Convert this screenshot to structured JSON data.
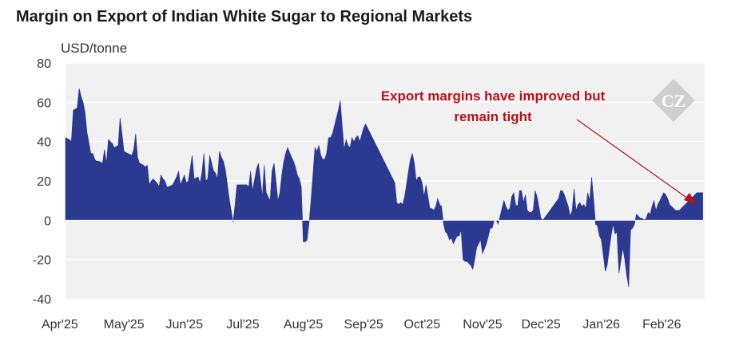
{
  "chart_data": {
    "type": "area",
    "title": "Margin on Export of Indian White Sugar to Regional Markets",
    "ylabel": "USD/tonne",
    "xlabel": "",
    "ylim": [
      -40,
      80
    ],
    "yticks": [
      80,
      60,
      40,
      20,
      0,
      -20,
      -40
    ],
    "ytick_labels": [
      "80",
      "60",
      "40",
      "20",
      "0",
      "-20",
      "-40"
    ],
    "xtick_labels": [
      "Apr'25",
      "May'25",
      "Jun'25",
      "Jul'25",
      "Aug'25",
      "Sep'25",
      "Oct'25",
      "Nov'25",
      "Dec'25",
      "Jan'26",
      "Feb'26"
    ],
    "grid": "horizontal",
    "color": "#2b3990",
    "annotation": {
      "lines": [
        "Export margins have improved but",
        "remain tight"
      ]
    },
    "series": [
      {
        "x": [
          "2025-04-01",
          "2025-04-03",
          "2025-04-04",
          "2025-04-05",
          "2025-04-07",
          "2025-04-08",
          "2025-04-09",
          "2025-04-10",
          "2025-04-11",
          "2025-04-12",
          "2025-04-14",
          "2025-04-15",
          "2025-04-16",
          "2025-04-17",
          "2025-04-18",
          "2025-04-20",
          "2025-04-21",
          "2025-04-22",
          "2025-04-23",
          "2025-04-24",
          "2025-04-25",
          "2025-04-26",
          "2025-04-28",
          "2025-04-29",
          "2025-04-30",
          "2025-05-01",
          "2025-05-03",
          "2025-05-05",
          "2025-05-06",
          "2025-05-07",
          "2025-05-08",
          "2025-05-09",
          "2025-05-11",
          "2025-05-12",
          "2025-05-13",
          "2025-05-14",
          "2025-05-15",
          "2025-05-16",
          "2025-05-18",
          "2025-05-19",
          "2025-05-20",
          "2025-05-21",
          "2025-05-22",
          "2025-05-23",
          "2025-05-24",
          "2025-05-26",
          "2025-05-27",
          "2025-05-28",
          "2025-05-29",
          "2025-05-30",
          "2025-06-01",
          "2025-06-02",
          "2025-06-03",
          "2025-06-05",
          "2025-06-06",
          "2025-06-08",
          "2025-06-09",
          "2025-06-10",
          "2025-06-11",
          "2025-06-12",
          "2025-06-13",
          "2025-06-14",
          "2025-06-16",
          "2025-06-17",
          "2025-06-18",
          "2025-06-19",
          "2025-06-20",
          "2025-06-21",
          "2025-06-22",
          "2025-06-24",
          "2025-06-26",
          "2025-06-27",
          "2025-06-28",
          "2025-06-30",
          "2025-07-01",
          "2025-07-02",
          "2025-07-03",
          "2025-07-04",
          "2025-07-05",
          "2025-07-06",
          "2025-07-08",
          "2025-07-09",
          "2025-07-10",
          "2025-07-11",
          "2025-07-12",
          "2025-07-13",
          "2025-07-15",
          "2025-07-16",
          "2025-07-17",
          "2025-07-18",
          "2025-07-19",
          "2025-07-20",
          "2025-07-21",
          "2025-07-22",
          "2025-07-23",
          "2025-07-24",
          "2025-07-26",
          "2025-07-27",
          "2025-07-28",
          "2025-07-29",
          "2025-07-30",
          "2025-07-31",
          "2025-08-01",
          "2025-08-02",
          "2025-08-03",
          "2025-08-04",
          "2025-08-05",
          "2025-08-07",
          "2025-08-08",
          "2025-08-09",
          "2025-08-10",
          "2025-08-11",
          "2025-08-12",
          "2025-08-13",
          "2025-08-14",
          "2025-08-15",
          "2025-08-16",
          "2025-08-17",
          "2025-08-18",
          "2025-08-19",
          "2025-08-20",
          "2025-08-21",
          "2025-08-22",
          "2025-08-23",
          "2025-08-24",
          "2025-08-25",
          "2025-08-26",
          "2025-08-27",
          "2025-08-28",
          "2025-08-29",
          "2025-08-30",
          "2025-09-01",
          "2025-09-02",
          "2025-09-17",
          "2025-09-18",
          "2025-09-19",
          "2025-09-20",
          "2025-09-21",
          "2025-09-22",
          "2025-09-23",
          "2025-09-24",
          "2025-09-25",
          "2025-09-26",
          "2025-09-27",
          "2025-09-28",
          "2025-09-29",
          "2025-09-30",
          "2025-10-01",
          "2025-10-02",
          "2025-10-03",
          "2025-10-05",
          "2025-10-06",
          "2025-10-07",
          "2025-10-08",
          "2025-10-09",
          "2025-10-10",
          "2025-10-11",
          "2025-10-12",
          "2025-10-13",
          "2025-10-14",
          "2025-10-15",
          "2025-10-16",
          "2025-10-17",
          "2025-10-18",
          "2025-10-19",
          "2025-10-20",
          "2025-10-21",
          "2025-10-22",
          "2025-10-23",
          "2025-10-24",
          "2025-10-25",
          "2025-10-26",
          "2025-10-27",
          "2025-10-28",
          "2025-10-29",
          "2025-10-30",
          "2025-10-31",
          "2025-11-01",
          "2025-11-03",
          "2025-11-04",
          "2025-11-05",
          "2025-11-06",
          "2025-11-07",
          "2025-11-08",
          "2025-11-09",
          "2025-11-10",
          "2025-11-11",
          "2025-11-12",
          "2025-11-13",
          "2025-11-14",
          "2025-11-15",
          "2025-11-16",
          "2025-11-17",
          "2025-11-18",
          "2025-11-19",
          "2025-11-20",
          "2025-11-21",
          "2025-11-22",
          "2025-11-23",
          "2025-11-24",
          "2025-11-25",
          "2025-11-26",
          "2025-11-27",
          "2025-11-28",
          "2025-11-29",
          "2025-12-01",
          "2025-12-02",
          "2025-12-10",
          "2025-12-11",
          "2025-12-12",
          "2025-12-13",
          "2025-12-14",
          "2025-12-15",
          "2025-12-16",
          "2025-12-17",
          "2025-12-18",
          "2025-12-19",
          "2025-12-20",
          "2025-12-21",
          "2025-12-22",
          "2025-12-23",
          "2025-12-24",
          "2025-12-25",
          "2025-12-26",
          "2025-12-27",
          "2025-12-28",
          "2025-12-29",
          "2025-12-30",
          "2025-12-31",
          "2026-01-01",
          "2026-01-02",
          "2026-01-03",
          "2026-01-04",
          "2026-01-05",
          "2026-01-06",
          "2026-01-07",
          "2026-01-08",
          "2026-01-09",
          "2026-01-10",
          "2026-01-11",
          "2026-01-12",
          "2026-01-13",
          "2026-01-14",
          "2026-01-15",
          "2026-01-16",
          "2026-01-17",
          "2026-01-18",
          "2026-01-19",
          "2026-01-20",
          "2026-01-21",
          "2026-01-22",
          "2026-01-23",
          "2026-01-24",
          "2026-01-25",
          "2026-01-26",
          "2026-01-27",
          "2026-01-28",
          "2026-01-29",
          "2026-01-30",
          "2026-01-31",
          "2026-02-01",
          "2026-02-02",
          "2026-02-03",
          "2026-02-04",
          "2026-02-05",
          "2026-02-06",
          "2026-02-07",
          "2026-02-08",
          "2026-02-09",
          "2026-02-10",
          "2026-02-11",
          "2026-02-12",
          "2026-02-13",
          "2026-02-14",
          "2026-02-15",
          "2026-02-16",
          "2026-02-17",
          "2026-02-18",
          "2026-02-19",
          "2026-02-20",
          "2026-02-21",
          "2026-02-22"
        ],
        "y": [
          42,
          41,
          40,
          56,
          57,
          67,
          63,
          60,
          55,
          45,
          34,
          34,
          31,
          30,
          30,
          29,
          36,
          29,
          41,
          40,
          39,
          37,
          38,
          52,
          44,
          35,
          34,
          33,
          36,
          44,
          32,
          29,
          28,
          27,
          28,
          18,
          20,
          21,
          19,
          17,
          23,
          21,
          20,
          17,
          17,
          18,
          20,
          22,
          25,
          18,
          23,
          19,
          20,
          33,
          21,
          22,
          19,
          24,
          34,
          20,
          21,
          33,
          25,
          24,
          21,
          35,
          32,
          30,
          26,
          11,
          -1,
          8,
          18,
          18,
          18,
          18,
          18,
          17,
          25,
          15,
          26,
          29,
          21,
          12,
          28,
          14,
          10,
          25,
          29,
          20,
          10,
          14,
          23,
          30,
          34,
          37,
          32,
          30,
          27,
          23,
          21,
          17,
          -11,
          -11,
          -10,
          -1,
          10,
          37,
          35,
          38,
          33,
          31,
          31,
          34,
          42,
          42,
          44,
          48,
          52,
          56,
          61,
          48,
          36,
          41,
          38,
          37,
          42,
          40,
          42,
          43,
          40,
          47,
          49,
          19,
          9,
          8,
          9,
          8,
          12,
          18,
          25,
          31,
          34,
          29,
          20,
          22,
          22,
          19,
          12,
          18,
          6,
          6,
          5,
          7,
          11,
          8,
          7,
          -2,
          -6,
          -7,
          -10,
          -9,
          -12,
          -10,
          -8,
          -8,
          -5,
          -20,
          -21,
          -21,
          -22,
          -23,
          -25,
          -20,
          -14,
          -12,
          -10,
          -17,
          -12,
          -8,
          -4,
          -4,
          0,
          0,
          -2,
          2,
          6,
          10,
          7,
          5,
          6,
          12,
          14,
          8,
          7,
          15,
          15,
          9,
          13,
          5,
          4,
          4,
          5,
          15,
          12,
          1,
          0,
          11,
          15,
          15,
          13,
          10,
          7,
          2,
          5,
          16,
          5,
          8,
          9,
          7,
          8,
          6,
          14,
          10,
          22,
          11,
          -2,
          -3,
          -8,
          -10,
          -18,
          -26,
          -23,
          -15,
          -8,
          -2,
          -7,
          -6,
          -27,
          -21,
          -14,
          -20,
          -28,
          -34,
          -5,
          -4,
          -2,
          3,
          2,
          1,
          1,
          0,
          1,
          4,
          3,
          7,
          10,
          5,
          8,
          10,
          12,
          14,
          13,
          11,
          8,
          7,
          6,
          5,
          5,
          5,
          6,
          7,
          8,
          9,
          10,
          11,
          12,
          13,
          14,
          14,
          14,
          14
        ]
      }
    ]
  },
  "logo": {
    "text": "CZ"
  }
}
